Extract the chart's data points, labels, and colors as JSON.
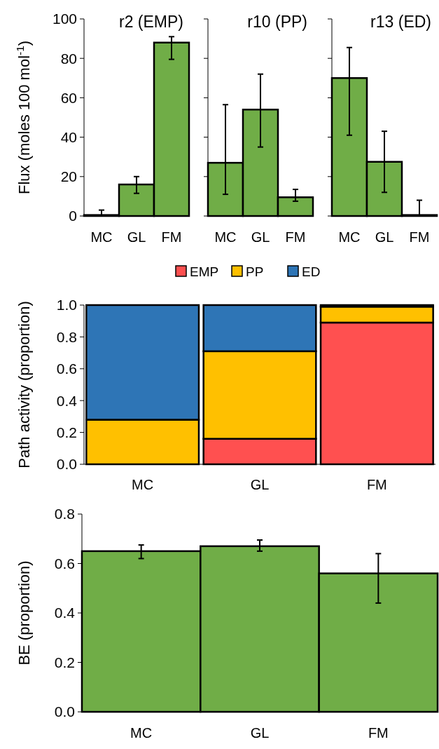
{
  "chart_data": [
    {
      "type": "bar",
      "title": "r2 (EMP)",
      "ylabel": "Flux (moles 100 mol$^{-1}$)",
      "categories": [
        "MC",
        "GL",
        "FM"
      ],
      "values": [
        0.5,
        16,
        88
      ],
      "errors": [
        [
          0,
          3
        ],
        [
          11.5,
          20
        ],
        [
          79.5,
          91
        ]
      ],
      "color": "#70ad47",
      "ylim": [
        0,
        100
      ],
      "yticks": [
        0,
        20,
        40,
        60,
        80,
        100
      ],
      "grid": false,
      "legend": false
    },
    {
      "type": "bar",
      "title": "r10 (PP)",
      "categories": [
        "MC",
        "GL",
        "FM"
      ],
      "values": [
        27,
        54,
        9.5
      ],
      "errors": [
        [
          11,
          56.5
        ],
        [
          35,
          72
        ],
        [
          7.5,
          13.5
        ]
      ],
      "color": "#70ad47",
      "ylim": [
        0,
        100
      ],
      "yticks": [
        0,
        20,
        40,
        60,
        80,
        100
      ],
      "tick_labels": "x",
      "grid": false,
      "legend": false
    },
    {
      "type": "bar",
      "title": "r13 (ED)",
      "categories": [
        "MC",
        "GL",
        "FM"
      ],
      "values": [
        70,
        27.5,
        0.5
      ],
      "errors": [
        [
          41,
          85.5
        ],
        [
          12,
          43
        ],
        [
          0,
          8
        ]
      ],
      "color": "#70ad47",
      "ylim": [
        0,
        100
      ],
      "yticks": [
        0,
        20,
        40,
        60,
        80,
        100
      ],
      "tick_labels": "x",
      "grid": false,
      "legend": false
    },
    {
      "type": "bar",
      "stacked": true,
      "ylabel": "Path activity (proportion)",
      "categories": [
        "MC",
        "GL",
        "FM"
      ],
      "series": [
        {
          "name": "EMP",
          "color": "#ff5050",
          "values": [
            0,
            0.16,
            0.89
          ]
        },
        {
          "name": "PP",
          "color": "#ffc000",
          "values": [
            0.28,
            0.55,
            0.1
          ]
        },
        {
          "name": "ED",
          "color": "#2e75b6",
          "values": [
            0.72,
            0.29,
            0.01
          ]
        }
      ],
      "ylim": [
        0,
        1
      ],
      "yticks": [
        {
          "value": 0,
          "label": "0.0"
        },
        {
          "value": 0.2,
          "label": "0.2"
        },
        {
          "value": 0.4,
          "label": "0.4"
        },
        {
          "value": 0.6,
          "label": "0.6"
        },
        {
          "value": 0.8,
          "label": "0.8"
        },
        {
          "value": 1,
          "label": "1.0"
        }
      ],
      "grid": false,
      "legend": "top"
    },
    {
      "type": "bar",
      "ylabel": "BE (proportion)",
      "categories": [
        "MC",
        "GL",
        "FM"
      ],
      "values": [
        0.65,
        0.67,
        0.56
      ],
      "errors": [
        [
          0.62,
          0.675
        ],
        [
          0.65,
          0.695
        ],
        [
          0.44,
          0.64
        ]
      ],
      "color": "#70ad47",
      "ylim": [
        0,
        0.8
      ],
      "yticks": [
        {
          "value": 0,
          "label": "0.0"
        },
        {
          "value": 0.2,
          "label": "0.2"
        },
        {
          "value": 0.4,
          "label": "0.4"
        },
        {
          "value": 0.6,
          "label": "0.6"
        },
        {
          "value": 0.8,
          "label": "0.8"
        }
      ],
      "grid": false,
      "legend": false
    }
  ]
}
